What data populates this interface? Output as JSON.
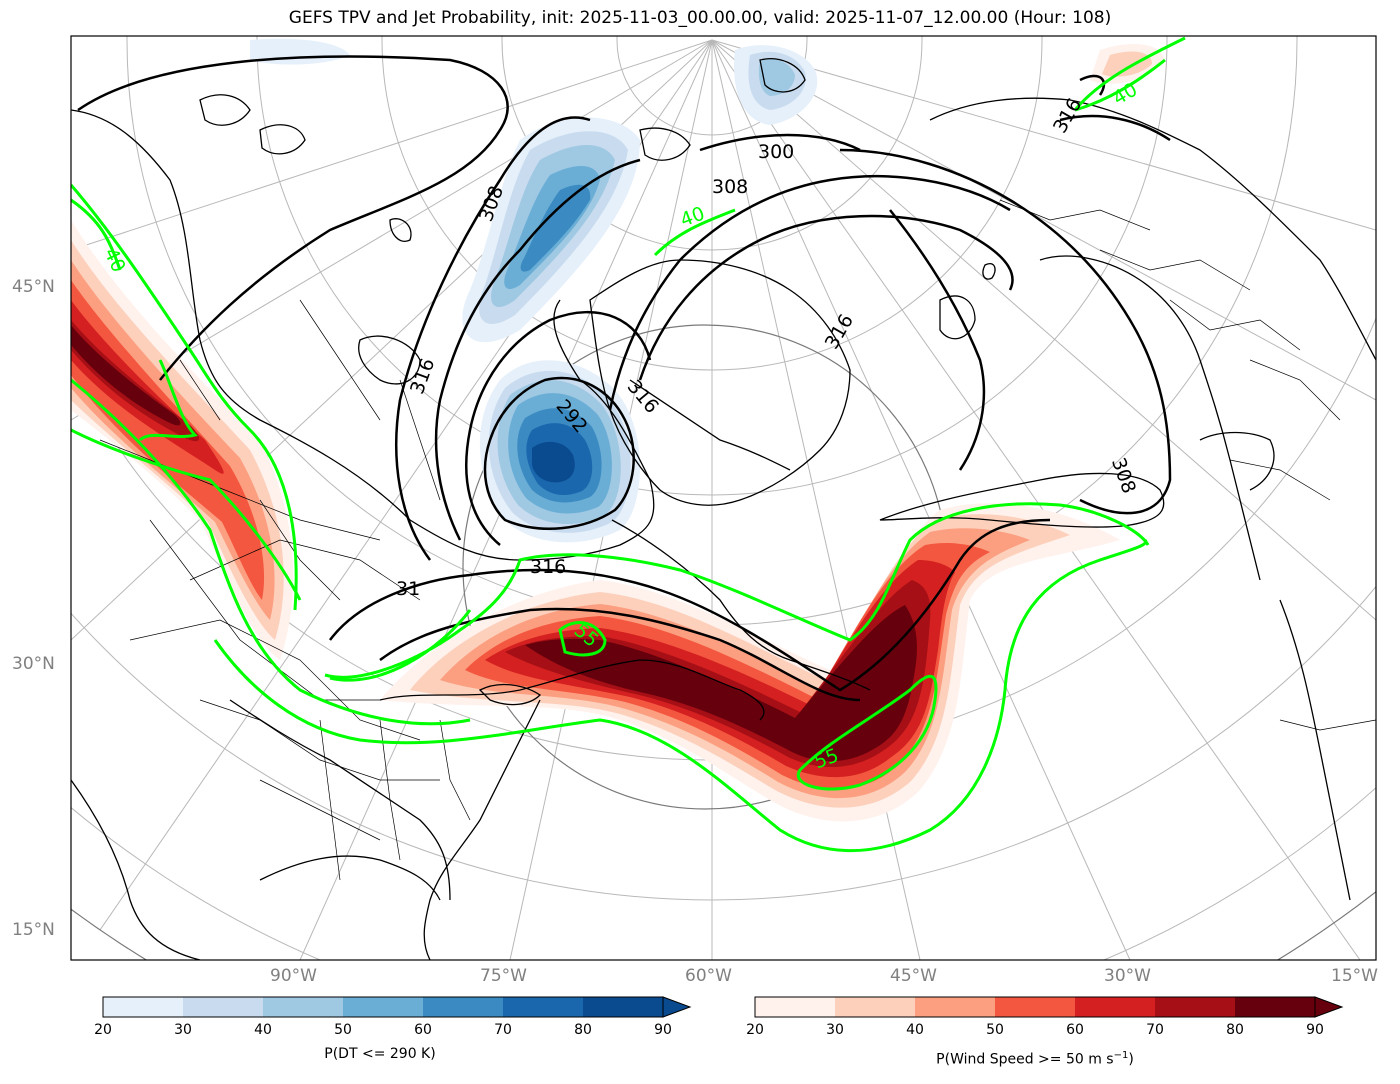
{
  "title": "GEFS TPV and Jet Probability, init: 2025-11-03_00.00.00, valid: 2025-11-07_12.00.00 (Hour: 108)",
  "lat_labels": [
    "45°N",
    "30°N",
    "15°N"
  ],
  "lon_labels": [
    "90°W",
    "75°W",
    "60°W",
    "45°W",
    "30°W",
    "15°W"
  ],
  "contour_labels_theta": [
    "300",
    "308",
    "308",
    "316",
    "316",
    "316",
    "316",
    "308",
    "292",
    "31",
    "316"
  ],
  "contour_labels_jet": [
    "40",
    "40",
    "40",
    "55",
    "55"
  ],
  "colorbar_dt": {
    "label": "P(DT <= 290 K)",
    "ticks": [
      "20",
      "30",
      "40",
      "50",
      "60",
      "70",
      "80",
      "90"
    ],
    "colors": [
      "#e6f0fa",
      "#c9dcef",
      "#9fc8e2",
      "#6aaed6",
      "#3b8bc2",
      "#1a67ad",
      "#0a4a8f"
    ]
  },
  "colorbar_wind": {
    "label": "P(Wind Speed >= 50 m s",
    "label_sup": "−1",
    "label_end": ")",
    "ticks": [
      "20",
      "30",
      "40",
      "50",
      "60",
      "70",
      "80",
      "90"
    ],
    "colors": [
      "#fff1ec",
      "#fdd0bc",
      "#fc9f81",
      "#f4573f",
      "#d42020",
      "#a50f15",
      "#67000d"
    ]
  },
  "colors": {
    "jet_contour": "#00ff00",
    "theta_contour": "#000000",
    "graticule": "#b0b0b0"
  }
}
